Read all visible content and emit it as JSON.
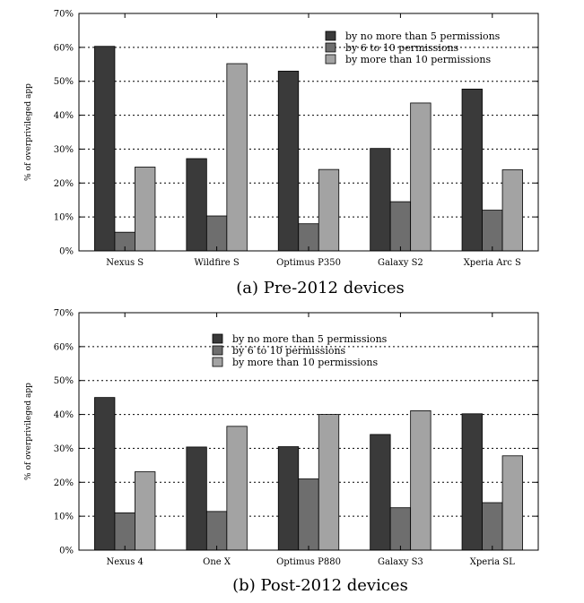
{
  "chart_data": [
    {
      "type": "bar",
      "caption": "(a)  Pre-2012 devices",
      "ylabel": "% of overprivileged app",
      "ylim": [
        0,
        70
      ],
      "yticks": [
        "0%",
        "10%",
        "20%",
        "30%",
        "40%",
        "50%",
        "60%",
        "70%"
      ],
      "grid": "horizontal dotted",
      "legend_position": "top-right",
      "categories": [
        "Nexus S",
        "Wildfire S",
        "Optimus P350",
        "Galaxy S2",
        "Xperia Arc S"
      ],
      "series": [
        {
          "name": "by no more than 5 permissions",
          "color": "#3a3a3a",
          "values": [
            60.3,
            27.2,
            53.0,
            30.2,
            47.7
          ]
        },
        {
          "name": "by 6 to 10 permissions",
          "color": "#6e6e6e",
          "values": [
            5.5,
            10.3,
            8.0,
            14.5,
            12.0
          ]
        },
        {
          "name": "by more than 10 permissions",
          "color": "#a3a3a3",
          "values": [
            24.7,
            55.2,
            24.0,
            43.6,
            23.9
          ]
        }
      ]
    },
    {
      "type": "bar",
      "caption": "(b)  Post-2012 devices",
      "ylabel": "% of overprivileged app",
      "ylim": [
        0,
        70
      ],
      "yticks": [
        "0%",
        "10%",
        "20%",
        "30%",
        "40%",
        "50%",
        "60%",
        "70%"
      ],
      "grid": "horizontal dotted",
      "legend_position": "top-center",
      "categories": [
        "Nexus 4",
        "One X",
        "Optimus P880",
        "Galaxy S3",
        "Xperia SL"
      ],
      "series": [
        {
          "name": "by no more than 5 permissions",
          "color": "#3a3a3a",
          "values": [
            45.0,
            30.4,
            30.5,
            34.1,
            40.2
          ]
        },
        {
          "name": "by 6 to 10 permissions",
          "color": "#6e6e6e",
          "values": [
            11.0,
            11.4,
            21.0,
            12.5,
            14.0
          ]
        },
        {
          "name": "by more than 10 permissions",
          "color": "#a3a3a3",
          "values": [
            23.1,
            36.5,
            40.0,
            41.1,
            27.8
          ]
        }
      ]
    }
  ]
}
